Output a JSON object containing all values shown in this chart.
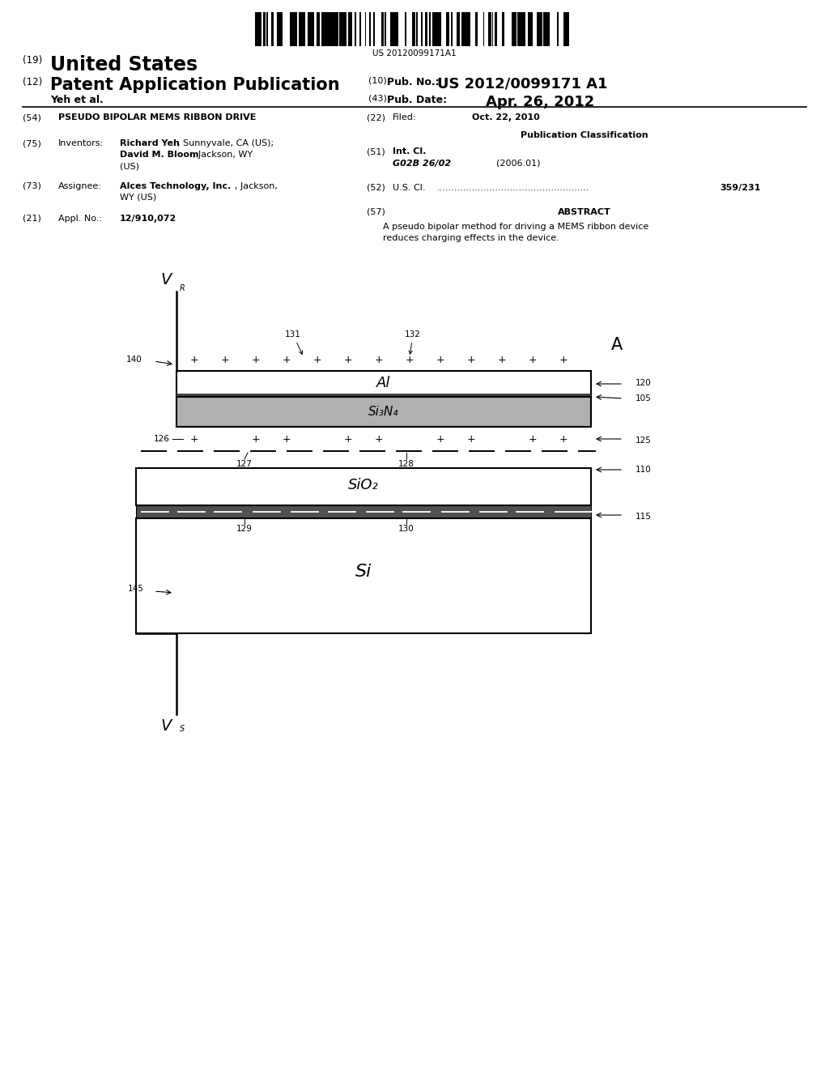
{
  "barcode_text": "US 20120099171A1",
  "header": {
    "line1_num": "(19)",
    "line1_text": "United States",
    "line2_num": "(12)",
    "line2_text": "Patent Application Publication",
    "line2_right_label": "(10)",
    "line2_right_key": "Pub. No.:",
    "line2_right_val": "US 2012/0099171 A1",
    "line3_left": "Yeh et al.",
    "line3_right_label": "(43)",
    "line3_right_key": "Pub. Date:",
    "line3_right_val": "Apr. 26, 2012"
  },
  "left_col": {
    "title_num": "(54)",
    "title_text": "PSEUDO BIPOLAR MEMS RIBBON DRIVE",
    "inventors_num": "(75)",
    "inventors_label": "Inventors:",
    "assignee_num": "(73)",
    "assignee_label": "Assignee:",
    "appl_num": "(21)",
    "appl_label": "Appl. No.:",
    "appl_text": "12/910,072"
  },
  "right_col": {
    "filed_num": "(22)",
    "filed_label": "Filed:",
    "filed_text": "Oct. 22, 2010",
    "pub_class_header": "Publication Classification",
    "int_cl_num": "(51)",
    "int_cl_label": "Int. Cl.",
    "int_cl_code": "G02B 26/02",
    "int_cl_year": "(2006.01)",
    "us_cl_num": "(52)",
    "us_cl_label": "U.S. Cl.",
    "us_cl_dots": "....................................................",
    "us_cl_val": "359/231",
    "abstract_num": "(57)",
    "abstract_header": "ABSTRACT",
    "abstract_line1": "A pseudo bipolar method for driving a MEMS ribbon device",
    "abstract_line2": "reduces charging effects in the device."
  },
  "diagram": {
    "Al_label": "Al",
    "Si3N4_label": "Si₃N₄",
    "SiO2_label": "SiO₂",
    "Si_label": "Si"
  }
}
